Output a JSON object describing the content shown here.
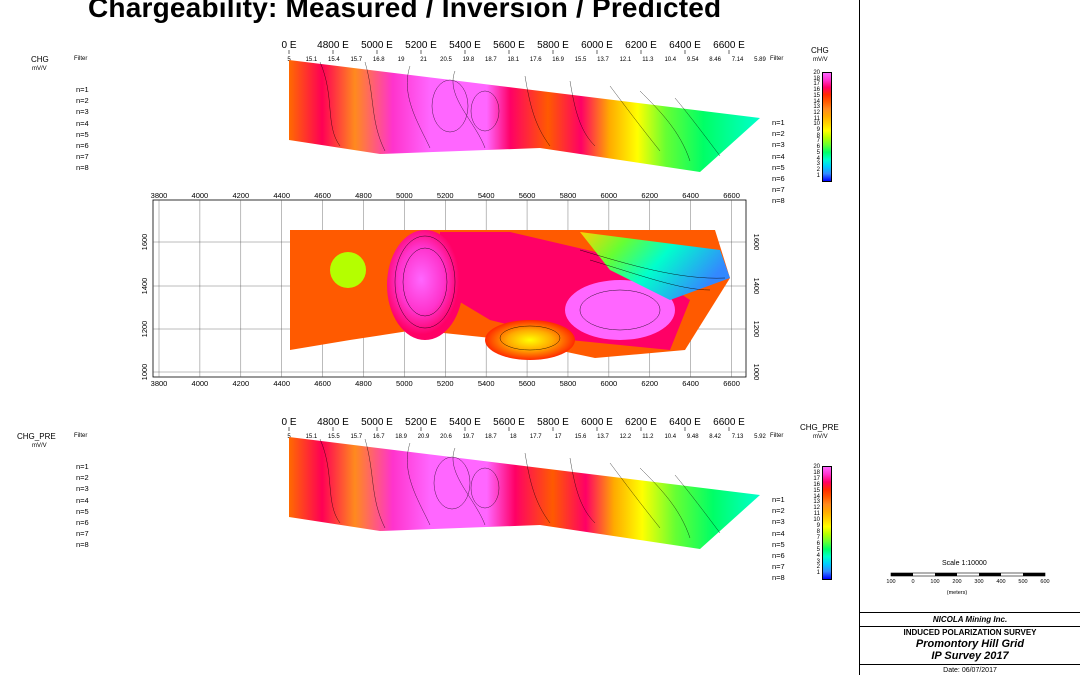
{
  "title": "Chargeability: Measured / Inversion / Predicted",
  "top_section": {
    "param_label": "CHG",
    "unit": "mV/V",
    "filter_label": "Filter",
    "filter_label_right": "Filter",
    "easting_labels": [
      "0 E",
      "4800 E",
      "5000 E",
      "5200 E",
      "5400 E",
      "5600 E",
      "5800 E",
      "6000 E",
      "6200 E",
      "6400 E",
      "6600 E"
    ],
    "filter_values": [
      "5",
      "15.1",
      "15.4",
      "15.7",
      "16.8",
      "19",
      "21",
      "20.5",
      "19.8",
      "18.7",
      "18.1",
      "17.6",
      "16.9",
      "15.5",
      "13.7",
      "12.1",
      "11.3",
      "10.4",
      "9.54",
      "8.46",
      "7.14",
      "5.89"
    ],
    "n_levels": [
      "n=1",
      "n=2",
      "n=3",
      "n=4",
      "n=5",
      "n=6",
      "n=7",
      "n=8"
    ],
    "n_levels_right": [
      "n=1",
      "n=2",
      "n=3",
      "n=4",
      "n=5",
      "n=6",
      "n=7",
      "n=8"
    ]
  },
  "middle_section": {
    "x_ticks": [
      "3800",
      "4000",
      "4200",
      "4400",
      "4600",
      "4800",
      "5000",
      "5200",
      "5400",
      "5600",
      "5800",
      "6000",
      "6200",
      "6400",
      "6600"
    ],
    "y_ticks": [
      "1600",
      "1400",
      "1200",
      "1000"
    ]
  },
  "bottom_section": {
    "param_label": "CHG_PRE",
    "unit": "mV/V",
    "filter_label": "Filter",
    "filter_label_right": "Filter",
    "easting_labels": [
      "0 E",
      "4800 E",
      "5000 E",
      "5200 E",
      "5400 E",
      "5600 E",
      "5800 E",
      "6000 E",
      "6200 E",
      "6400 E",
      "6600 E"
    ],
    "filter_values": [
      "5",
      "15.1",
      "15.5",
      "15.7",
      "16.7",
      "18.9",
      "20.9",
      "20.6",
      "19.7",
      "18.7",
      "18",
      "17.7",
      "17",
      "15.6",
      "13.7",
      "12.2",
      "11.2",
      "10.4",
      "9.48",
      "8.42",
      "7.13",
      "5.92"
    ],
    "n_levels": [
      "n=1",
      "n=2",
      "n=3",
      "n=4",
      "n=5",
      "n=6",
      "n=7",
      "n=8"
    ],
    "n_levels_right": [
      "n=1",
      "n=2",
      "n=3",
      "n=4",
      "n=5",
      "n=6",
      "n=7",
      "n=8"
    ]
  },
  "legend_top": {
    "title": "CHG",
    "unit": "mV/V",
    "values": [
      "20",
      "18",
      "17",
      "16",
      "15",
      "14",
      "13",
      "12",
      "11",
      "10",
      "9",
      "8",
      "7",
      "6",
      "5",
      "4",
      "3",
      "2",
      "1"
    ]
  },
  "legend_bottom": {
    "title": "CHG_PRE",
    "unit": "mV/V",
    "values": [
      "20",
      "18",
      "17",
      "16",
      "15",
      "14",
      "13",
      "12",
      "11",
      "10",
      "9",
      "8",
      "7",
      "6",
      "5",
      "4",
      "3",
      "2",
      "1"
    ]
  },
  "scale": {
    "label": "Scale 1:10000",
    "ticks": [
      "100",
      "0",
      "100",
      "200",
      "300",
      "400",
      "500",
      "600"
    ],
    "unit": "(meters)"
  },
  "title_block": {
    "company": "NICOLA Mining Inc.",
    "survey_type": "INDUCED POLARIZATION SURVEY",
    "grid": "Promontory Hill Grid",
    "survey": "IP Survey 2017",
    "date": "Date: 06/07/2017"
  },
  "colors": {
    "scale": [
      "#ff66ff",
      "#ff33cc",
      "#ff0066",
      "#ff2a00",
      "#ff5a00",
      "#ff8a1e",
      "#ffaa00",
      "#ffd200",
      "#ffff00",
      "#b4ff00",
      "#66ff33",
      "#00ff66",
      "#00ffcc",
      "#00ccff",
      "#3388ff",
      "#0000ff"
    ]
  }
}
